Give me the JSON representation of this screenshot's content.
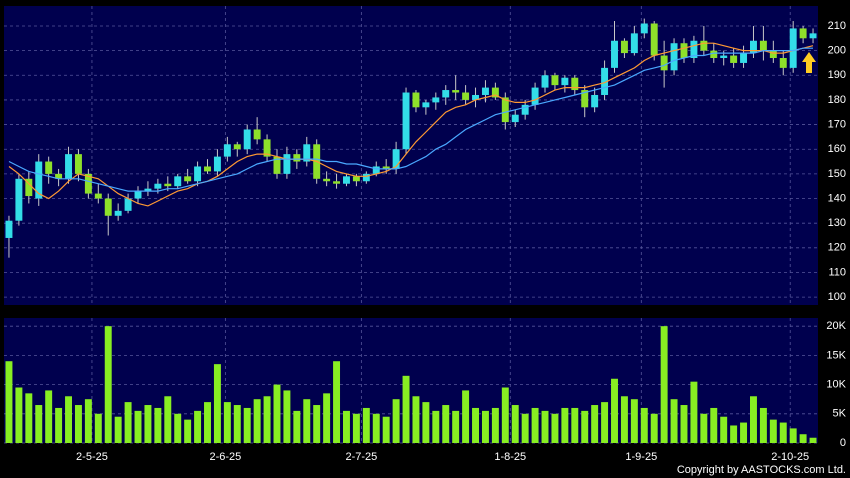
{
  "chart_data": {
    "type": "candlestick",
    "copyright": "Copyright by AASTOCKS.com Ltd.",
    "open": [
      124,
      131,
      148,
      140,
      155,
      150,
      148,
      158,
      150,
      142,
      140,
      133,
      135,
      140,
      143,
      144,
      146,
      145,
      149,
      147,
      153,
      151,
      157,
      162,
      160,
      168,
      164,
      157,
      150,
      158,
      155,
      162,
      148,
      147,
      146,
      149,
      147,
      150,
      153,
      152,
      160,
      183,
      177,
      179,
      181,
      184,
      183,
      180,
      182,
      185,
      181,
      171,
      174,
      178,
      185,
      190,
      186,
      189,
      184,
      177,
      182,
      193,
      204,
      199,
      207,
      211,
      198,
      192,
      203,
      197,
      204,
      200,
      197,
      198,
      195,
      199,
      204,
      200,
      197,
      193,
      209,
      205
    ],
    "high": [
      133,
      150,
      151,
      158,
      157,
      152,
      161,
      160,
      152,
      146,
      142,
      138,
      142,
      145,
      147,
      148,
      149,
      150,
      152,
      155,
      156,
      160,
      165,
      163,
      170,
      173,
      166,
      160,
      161,
      160,
      165,
      164,
      151,
      150,
      150,
      150,
      151,
      155,
      156,
      163,
      185,
      184,
      180,
      183,
      186,
      190,
      186,
      185,
      188,
      187,
      183,
      176,
      180,
      187,
      192,
      191,
      190,
      190,
      186,
      185,
      196,
      212,
      205,
      210,
      213,
      212,
      204,
      205,
      205,
      206,
      210,
      203,
      200,
      201,
      202,
      210,
      210,
      204,
      200,
      212,
      210,
      209
    ],
    "low": [
      116,
      129,
      138,
      137,
      146,
      145,
      146,
      147,
      140,
      138,
      125,
      131,
      134,
      138,
      141,
      142,
      143,
      144,
      146,
      145,
      150,
      149,
      155,
      157,
      158,
      162,
      155,
      148,
      148,
      152,
      153,
      146,
      145,
      144,
      145,
      145,
      146,
      149,
      150,
      150,
      158,
      175,
      174,
      176,
      178,
      180,
      178,
      177,
      179,
      180,
      168,
      169,
      172,
      176,
      183,
      184,
      183,
      182,
      173,
      175,
      180,
      191,
      197,
      198,
      205,
      196,
      185,
      190,
      195,
      195,
      198,
      195,
      194,
      193,
      193,
      197,
      196,
      195,
      190,
      191,
      203,
      203
    ],
    "close": [
      131,
      148,
      141,
      155,
      150,
      148,
      158,
      150,
      142,
      140,
      133,
      135,
      140,
      143,
      144,
      146,
      145,
      149,
      147,
      153,
      151,
      157,
      162,
      160,
      168,
      164,
      157,
      150,
      158,
      155,
      162,
      148,
      147,
      146,
      149,
      147,
      150,
      153,
      152,
      160,
      183,
      177,
      179,
      181,
      184,
      183,
      180,
      182,
      185,
      181,
      171,
      174,
      178,
      185,
      190,
      186,
      189,
      184,
      177,
      182,
      193,
      204,
      199,
      207,
      211,
      198,
      192,
      203,
      197,
      204,
      200,
      197,
      198,
      195,
      199,
      204,
      200,
      197,
      193,
      209,
      205,
      207
    ],
    "ma_short": [
      153,
      150,
      146,
      142,
      140,
      143,
      147,
      150,
      149,
      148,
      145,
      142,
      140,
      138,
      137,
      139,
      141,
      143,
      144,
      146,
      147,
      149,
      152,
      155,
      157,
      158,
      158,
      157,
      156,
      156,
      156,
      155,
      153,
      151,
      150,
      149,
      149,
      150,
      151,
      153,
      158,
      163,
      167,
      171,
      175,
      177,
      178,
      180,
      181,
      182,
      180,
      179,
      179,
      180,
      182,
      184,
      185,
      185,
      185,
      186,
      187,
      189,
      191,
      193,
      196,
      198,
      199,
      200,
      201,
      202,
      203,
      203,
      202,
      201,
      200,
      200,
      200,
      199,
      199,
      200,
      201,
      202
    ],
    "ma_long": [
      155,
      153,
      151,
      150,
      149,
      148,
      148,
      148,
      147,
      146,
      145,
      144,
      143,
      143,
      143,
      143,
      144,
      144,
      145,
      146,
      147,
      148,
      149,
      150,
      152,
      154,
      155,
      156,
      156,
      156,
      156,
      156,
      155,
      155,
      154,
      154,
      153,
      152,
      152,
      152,
      153,
      155,
      157,
      160,
      162,
      165,
      168,
      170,
      172,
      174,
      175,
      176,
      177,
      178,
      179,
      180,
      181,
      182,
      183,
      184,
      185,
      186,
      188,
      190,
      192,
      193,
      194,
      196,
      197,
      198,
      198,
      199,
      199,
      199,
      199,
      199,
      200,
      200,
      200,
      200,
      201,
      201
    ],
    "volume": [
      14000,
      9500,
      8500,
      6500,
      9000,
      6000,
      8000,
      6500,
      7500,
      5000,
      20000,
      4500,
      7000,
      5500,
      6500,
      6000,
      8000,
      5000,
      4000,
      5500,
      7000,
      13500,
      7000,
      6500,
      6000,
      7500,
      8000,
      10000,
      9000,
      5500,
      7500,
      6500,
      8500,
      14000,
      5500,
      5000,
      6000,
      5000,
      4500,
      7500,
      11500,
      8000,
      7000,
      5500,
      6500,
      5500,
      9000,
      6000,
      5500,
      6000,
      9500,
      6500,
      5000,
      6000,
      5500,
      5000,
      6000,
      6000,
      5500,
      6500,
      7000,
      11000,
      8000,
      7500,
      6000,
      5000,
      20000,
      7500,
      6500,
      10500,
      5000,
      6000,
      4500,
      3000,
      3500,
      8000,
      6000,
      4000,
      3500,
      2500,
      1500,
      900
    ],
    "up_color": "#33dde8",
    "down_color": "#8ee02a",
    "ma_short_color": "#ff9933",
    "ma_long_color": "#4aa8ff",
    "volume_color": "#88ee22",
    "xticks": [
      {
        "value": 8.36,
        "label": "2-5-25"
      },
      {
        "value": 21.8,
        "label": "2-6-25"
      },
      {
        "value": 35.5,
        "label": "2-7-25"
      },
      {
        "value": 50.5,
        "label": "1-8-25"
      },
      {
        "value": 63.7,
        "label": "1-9-25"
      },
      {
        "value": 78.7,
        "label": "2-10-25"
      }
    ],
    "ylim": [
      96.8,
      218.1
    ],
    "yticks": [
      100,
      110,
      120,
      130,
      140,
      150,
      160,
      170,
      180,
      190,
      200,
      210
    ],
    "volume_ylim": [
      0,
      21400
    ],
    "volume_yticks": [
      0,
      {
        "value": 5000,
        "label": "5K"
      },
      {
        "value": 10000,
        "label": "10K"
      },
      {
        "value": 15000,
        "label": "15K"
      },
      {
        "value": 20000,
        "label": "20K"
      }
    ],
    "grid": true
  }
}
